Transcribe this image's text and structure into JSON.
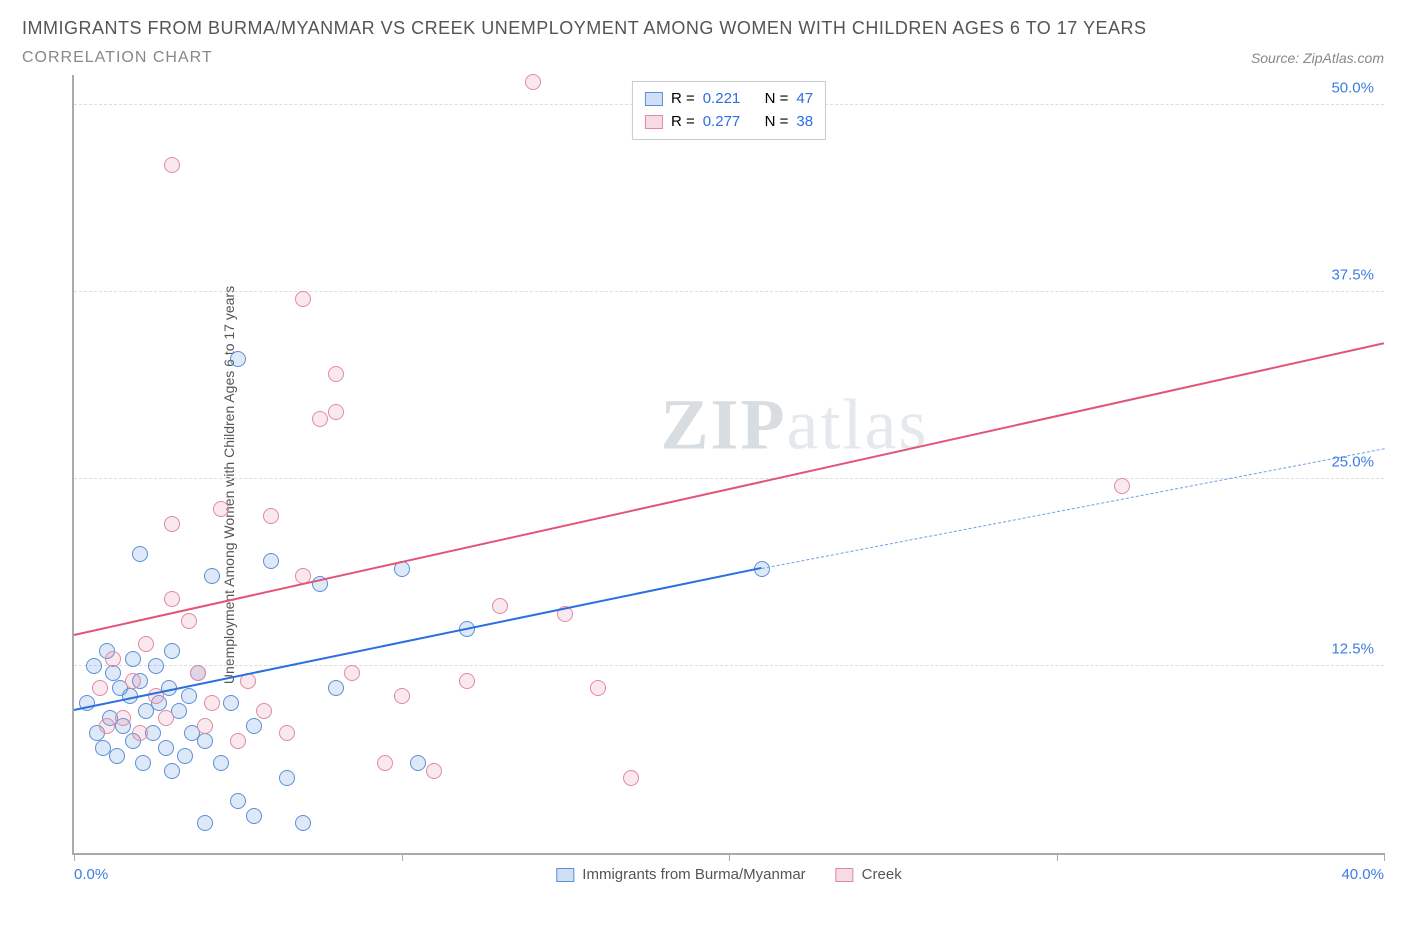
{
  "header": {
    "title": "IMMIGRANTS FROM BURMA/MYANMAR VS CREEK UNEMPLOYMENT AMONG WOMEN WITH CHILDREN AGES 6 TO 17 YEARS",
    "subtitle": "CORRELATION CHART",
    "source_label": "Source: ",
    "source_text": "ZipAtlas.com"
  },
  "watermark": {
    "strong": "ZIP",
    "light": "atlas"
  },
  "chart": {
    "type": "scatter",
    "background_color": "#ffffff",
    "grid_color": "#dddddd",
    "axis_color": "#aaaaaa",
    "tick_label_color": "#3d7de0",
    "xlim": [
      0,
      40
    ],
    "ylim": [
      0,
      52
    ],
    "y_ticks": [
      12.5,
      25.0,
      37.5,
      50.0
    ],
    "y_tick_labels": [
      "12.5%",
      "25.0%",
      "37.5%",
      "50.0%"
    ],
    "x_ticks": [
      0,
      10,
      20,
      30,
      40
    ],
    "x_min_label": "0.0%",
    "x_max_label": "40.0%",
    "y_axis_label": "Unemployment Among Women with Children Ages 6 to 17 years",
    "marker_radius": 8,
    "marker_stroke_width": 1.5,
    "series": [
      {
        "name": "Immigrants from Burma/Myanmar",
        "color_stroke": "#5b8fd9",
        "color_fill": "#5b8fd933",
        "R_label": "R = ",
        "R_value": "0.221",
        "N_label": "N = ",
        "N_value": "47",
        "trend": {
          "x0": 0,
          "y0": 9.5,
          "x1": 21,
          "y1": 19.0,
          "color": "#2b6fe0",
          "width": 2
        },
        "trend_ext": {
          "x0": 21,
          "y0": 19.0,
          "x1": 40,
          "y1": 27.0,
          "color": "#6fa0e8",
          "width": 1.5,
          "dashed": true
        },
        "points": [
          [
            0.4,
            10.0
          ],
          [
            0.6,
            12.5
          ],
          [
            0.7,
            8.0
          ],
          [
            0.9,
            7.0
          ],
          [
            1.0,
            13.5
          ],
          [
            1.1,
            9.0
          ],
          [
            1.2,
            12.0
          ],
          [
            1.3,
            6.5
          ],
          [
            1.4,
            11.0
          ],
          [
            1.5,
            8.5
          ],
          [
            1.7,
            10.5
          ],
          [
            1.8,
            13.0
          ],
          [
            1.8,
            7.5
          ],
          [
            2.0,
            11.5
          ],
          [
            2.0,
            20.0
          ],
          [
            2.1,
            6.0
          ],
          [
            2.2,
            9.5
          ],
          [
            2.4,
            8.0
          ],
          [
            2.5,
            12.5
          ],
          [
            2.6,
            10.0
          ],
          [
            2.8,
            7.0
          ],
          [
            2.9,
            11.0
          ],
          [
            3.0,
            13.5
          ],
          [
            3.0,
            5.5
          ],
          [
            3.2,
            9.5
          ],
          [
            3.4,
            6.5
          ],
          [
            3.5,
            10.5
          ],
          [
            3.6,
            8.0
          ],
          [
            3.8,
            12.0
          ],
          [
            4.0,
            7.5
          ],
          [
            4.0,
            2.0
          ],
          [
            4.2,
            18.5
          ],
          [
            4.5,
            6.0
          ],
          [
            4.8,
            10.0
          ],
          [
            5.0,
            3.5
          ],
          [
            5.0,
            33.0
          ],
          [
            5.5,
            2.5
          ],
          [
            5.5,
            8.5
          ],
          [
            6.0,
            19.5
          ],
          [
            6.5,
            5.0
          ],
          [
            7.0,
            2.0
          ],
          [
            7.5,
            18.0
          ],
          [
            8.0,
            11.0
          ],
          [
            10.0,
            19.0
          ],
          [
            10.5,
            6.0
          ],
          [
            12.0,
            15.0
          ],
          [
            21.0,
            19.0
          ]
        ]
      },
      {
        "name": "Creek",
        "color_stroke": "#e08aa3",
        "color_fill": "#e08aa333",
        "R_label": "R = ",
        "R_value": "0.277",
        "N_label": "N = ",
        "N_value": "38",
        "trend": {
          "x0": 0,
          "y0": 14.5,
          "x1": 40,
          "y1": 34.0,
          "color": "#e05578",
          "width": 2
        },
        "points": [
          [
            0.8,
            11.0
          ],
          [
            1.0,
            8.5
          ],
          [
            1.2,
            13.0
          ],
          [
            1.5,
            9.0
          ],
          [
            1.8,
            11.5
          ],
          [
            2.0,
            8.0
          ],
          [
            2.2,
            14.0
          ],
          [
            2.5,
            10.5
          ],
          [
            2.8,
            9.0
          ],
          [
            3.0,
            17.0
          ],
          [
            3.0,
            22.0
          ],
          [
            3.0,
            46.0
          ],
          [
            3.5,
            15.5
          ],
          [
            3.8,
            12.0
          ],
          [
            4.0,
            8.5
          ],
          [
            4.2,
            10.0
          ],
          [
            4.5,
            23.0
          ],
          [
            5.0,
            7.5
          ],
          [
            5.3,
            11.5
          ],
          [
            5.8,
            9.5
          ],
          [
            6.0,
            22.5
          ],
          [
            6.5,
            8.0
          ],
          [
            7.0,
            37.0
          ],
          [
            7.0,
            18.5
          ],
          [
            7.5,
            29.0
          ],
          [
            8.0,
            32.0
          ],
          [
            8.0,
            29.5
          ],
          [
            8.5,
            12.0
          ],
          [
            9.5,
            6.0
          ],
          [
            10.0,
            10.5
          ],
          [
            11.0,
            5.5
          ],
          [
            12.0,
            11.5
          ],
          [
            13.0,
            16.5
          ],
          [
            14.0,
            51.5
          ],
          [
            15.0,
            16.0
          ],
          [
            16.0,
            11.0
          ],
          [
            17.0,
            5.0
          ],
          [
            32.0,
            24.5
          ]
        ]
      }
    ],
    "legend_bottom": [
      {
        "label": "Immigrants from Burma/Myanmar",
        "stroke": "#5b8fd9",
        "fill": "#cfe0f5"
      },
      {
        "label": "Creek",
        "stroke": "#e08aa3",
        "fill": "#f7dbe3"
      }
    ]
  }
}
